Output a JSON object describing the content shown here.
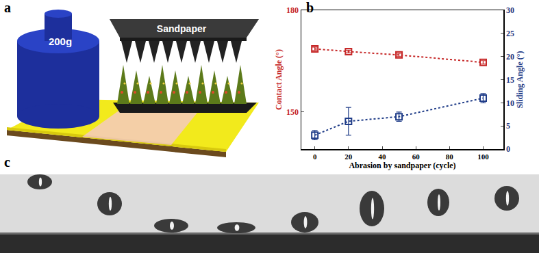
{
  "panel_labels": [
    "a",
    "b",
    "c"
  ],
  "illustration": {
    "weight_label": "200g",
    "tool_label": "Sandpaper"
  },
  "chart_data": {
    "type": "line",
    "x": [
      0,
      20,
      50,
      100
    ],
    "x_label": "Abrasion by sandpaper (cycle)",
    "xlim": [
      -8,
      112
    ],
    "xticks": [
      0,
      20,
      40,
      60,
      80,
      100
    ],
    "y_label": "Contact Angle (°)",
    "ylim": [
      139,
      180
    ],
    "yticks": [
      150,
      180
    ],
    "y2_label": "Sliding Angle (°)",
    "y2lim": [
      0,
      30
    ],
    "y2ticks": [
      0,
      5,
      10,
      15,
      20,
      25,
      30
    ],
    "grid": false,
    "series": [
      {
        "color": "#c62828",
        "values": [
          168.6,
          167.8,
          166.8,
          164.6
        ],
        "errors": [
          0.5,
          0.4,
          0.5,
          0.5
        ],
        "marker": "square-open",
        "line_style": "dot"
      },
      {
        "color": "#1f3c88",
        "axis": "y2",
        "values": [
          3,
          6,
          7,
          11
        ],
        "errors": [
          1,
          3,
          1,
          1
        ],
        "marker": "square-open",
        "line_style": "dot"
      }
    ]
  }
}
